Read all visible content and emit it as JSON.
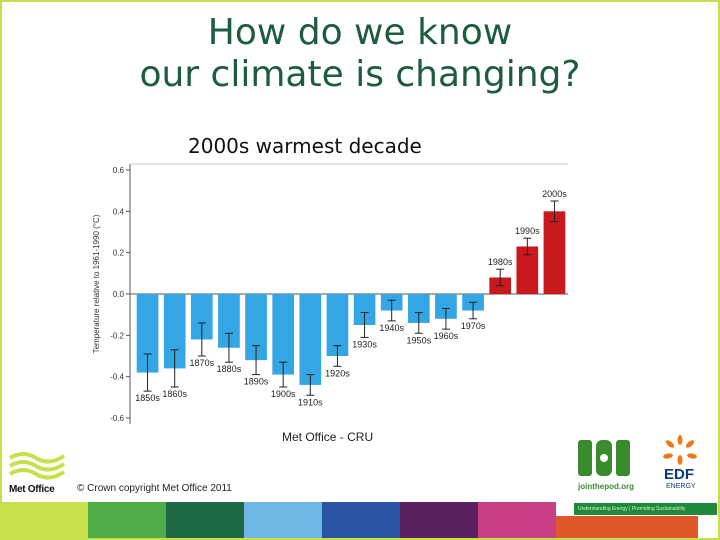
{
  "slide": {
    "title_line1": "How do we know",
    "title_line2": "our climate is changing?",
    "subtitle": "2000s warmest decade",
    "source": "Met Office - CRU",
    "copyright": "© Crown copyright Met Office 2011",
    "logo_metoffice": "Met Office",
    "logo_pod_url": "jointhepod.org",
    "logo_edf": "EDF",
    "logo_edf_sub": "ENERGY",
    "pod_tagline": "Understanding Energy | Promoting Sustainability",
    "stripe_colors": [
      "#c6e04a",
      "#4fae47",
      "#1d6b44",
      "#6fb7e4",
      "#2a55a4",
      "#5a2060",
      "#c83f85",
      "#e0582a"
    ]
  },
  "chart_data": {
    "type": "bar",
    "ylabel": "Temperature relative to 1961-1990 (°C)",
    "ylim": [
      -0.6,
      0.6
    ],
    "yticks": [
      "0.6",
      "0.4",
      "0.2",
      "0.0",
      "-0.2",
      "-0.4",
      "-0.6"
    ],
    "ytick_values": [
      0.6,
      0.4,
      0.2,
      0.0,
      -0.2,
      -0.4,
      -0.6
    ],
    "categories": [
      "1850s",
      "1860s",
      "1870s",
      "1880s",
      "1890s",
      "1900s",
      "1910s",
      "1920s",
      "1930s",
      "1940s",
      "1950s",
      "1960s",
      "1970s",
      "1980s",
      "1990s",
      "2000s"
    ],
    "values": [
      -0.38,
      -0.36,
      -0.22,
      -0.26,
      -0.32,
      -0.39,
      -0.44,
      -0.3,
      -0.15,
      -0.08,
      -0.14,
      -0.12,
      -0.08,
      0.08,
      0.23,
      0.4
    ],
    "error": [
      0.09,
      0.09,
      0.08,
      0.07,
      0.07,
      0.06,
      0.05,
      0.05,
      0.06,
      0.05,
      0.05,
      0.05,
      0.04,
      0.04,
      0.04,
      0.05
    ],
    "colors": {
      "negative": "#34a6e4",
      "positive": "#c9191e",
      "error_bar": "#222222"
    }
  }
}
